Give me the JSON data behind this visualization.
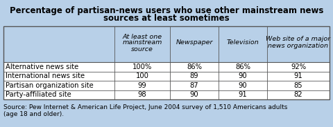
{
  "title_line1": "Percentage of partisan-news users who use other mainstream news",
  "title_line2": "sources at least sometimes",
  "col_headers": [
    "At least one\nmainstream\nsource",
    "Newspaper",
    "Television",
    "Web site of a major\nnews organization"
  ],
  "row_labels": [
    "Alternative news site",
    "International news site",
    "Partisan organization site",
    "Party-affiliated site"
  ],
  "cell_data": [
    [
      "100%",
      "86%",
      "86%",
      "92%"
    ],
    [
      "100",
      "89",
      "90",
      "91"
    ],
    [
      "99",
      "87",
      "90",
      "85"
    ],
    [
      "98",
      "90",
      "91",
      "82"
    ]
  ],
  "source_text": "Source: Pew Internet & American Life Project, June 2004 survey of 1,510 Americans adults\n(age 18 and older).",
  "bg_color": "#b8d0e8",
  "table_bg": "#ffffff",
  "title_fontsize": 8.5,
  "cell_fontsize": 7.2,
  "header_fontsize": 6.8,
  "source_fontsize": 6.5,
  "border_color": "#555555",
  "fig_width": 4.8,
  "fig_height": 1.84
}
